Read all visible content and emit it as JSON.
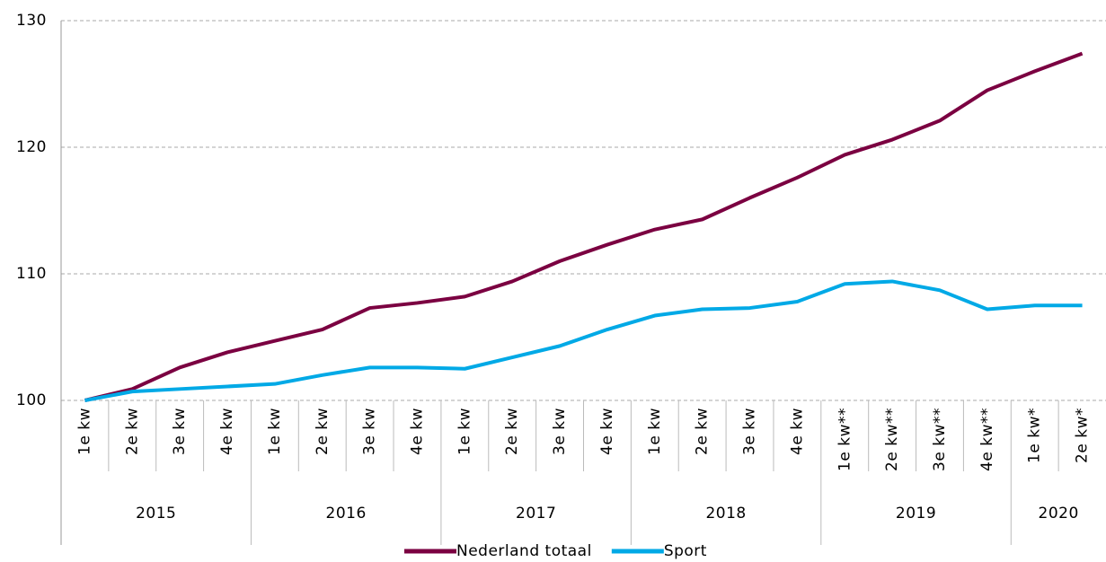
{
  "chart_data": {
    "type": "line",
    "groups": [
      {
        "name": "2015",
        "categories": [
          "1e kw",
          "2e kw",
          "3e kw",
          "4e kw"
        ]
      },
      {
        "name": "2016",
        "categories": [
          "1e kw",
          "2e kw",
          "3e kw",
          "4e kw"
        ]
      },
      {
        "name": "2017",
        "categories": [
          "1e kw",
          "2e kw",
          "3e kw",
          "4e kw"
        ]
      },
      {
        "name": "2018",
        "categories": [
          "1e kw",
          "2e kw",
          "3e kw",
          "4e kw"
        ]
      },
      {
        "name": "2019",
        "categories": [
          "1e kw**",
          "2e kw**",
          "3e kw**",
          "4e kw**"
        ]
      },
      {
        "name": "2020",
        "categories": [
          "1e kw*",
          "2e kw*"
        ]
      }
    ],
    "series": [
      {
        "name": "Nederland totaal",
        "color": "#7b0041",
        "values": [
          100,
          100.9,
          102.6,
          103.8,
          104.7,
          105.6,
          107.3,
          107.7,
          108.2,
          109.4,
          111.0,
          112.3,
          113.5,
          114.3,
          116.0,
          117.6,
          119.4,
          120.6,
          122.1,
          124.5,
          126.0,
          127.4
        ]
      },
      {
        "name": "Sport",
        "color": "#00a9e6",
        "values": [
          100,
          100.7,
          100.9,
          101.1,
          101.3,
          102.0,
          102.6,
          102.6,
          102.5,
          103.4,
          104.3,
          105.6,
          106.7,
          107.2,
          107.3,
          107.8,
          109.2,
          109.4,
          108.7,
          107.2,
          107.5,
          107.5
        ]
      }
    ],
    "ylim": [
      100,
      130
    ],
    "yticks": [
      100,
      110,
      120,
      130
    ],
    "grid": true
  }
}
